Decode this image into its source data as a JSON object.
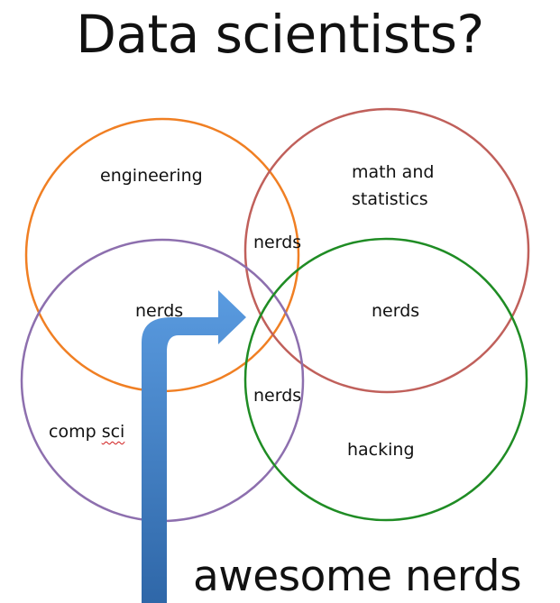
{
  "title": "Data scientists?",
  "circles": {
    "engineering": {
      "label": "engineering",
      "color": "#f07f23"
    },
    "math": {
      "label": "math and statistics",
      "line1": "math and",
      "line2": "statistics",
      "color": "#c0605b"
    },
    "compsci": {
      "label": "comp sci",
      "word1": "comp",
      "word2": "sci",
      "color": "#8d6fae"
    },
    "hacking": {
      "label": "hacking",
      "color": "#1f8c24"
    }
  },
  "overlaps": {
    "eng_math": "nerds",
    "eng_compsci": "nerds",
    "math_hacking": "nerds",
    "compsci_hacking": "nerds"
  },
  "arrow": {
    "color": "#3e7dc4"
  },
  "callout": "awesome nerds"
}
